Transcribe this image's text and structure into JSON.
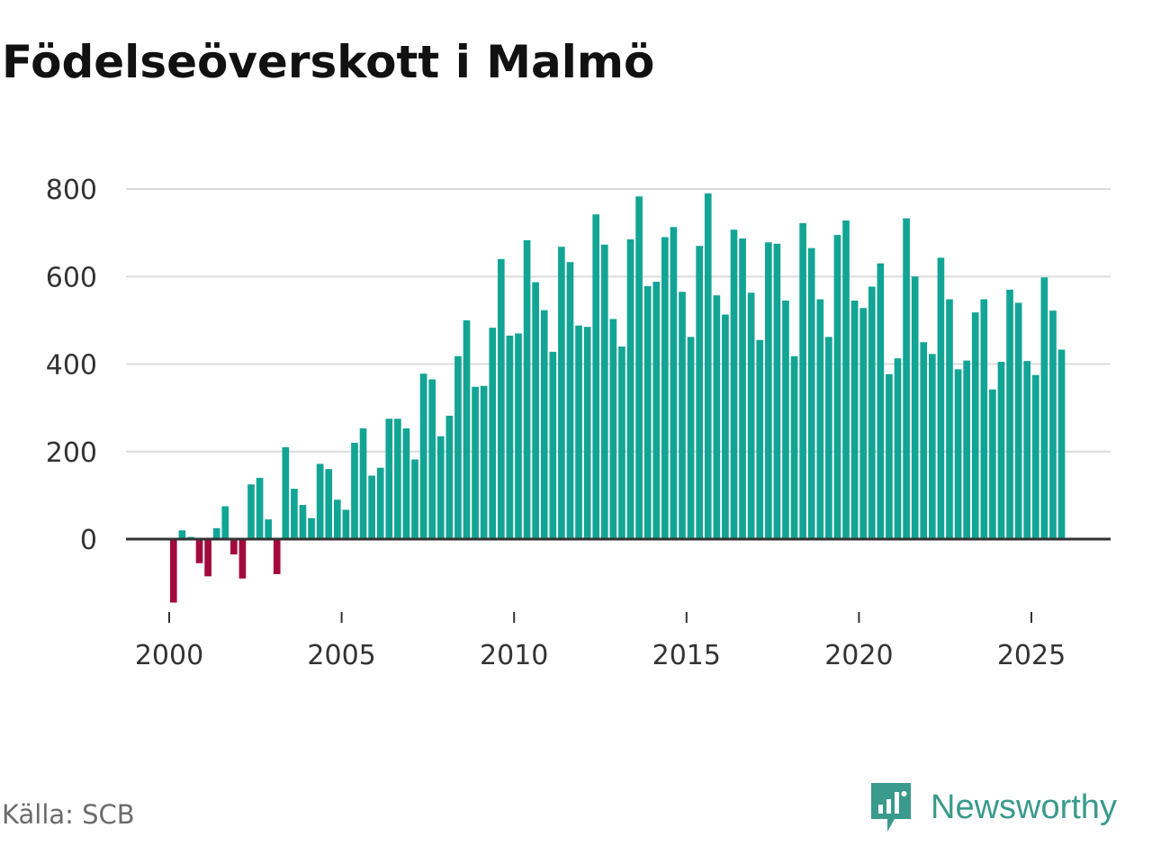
{
  "title": "Födelseöverskott i Malmö",
  "source": "Källa: SCB",
  "brand": {
    "name": "Newsworthy",
    "icon": "newsworthy-logo-icon",
    "color": "#3a9a8c"
  },
  "colors": {
    "positive": "#12a595",
    "negative": "#a3093e",
    "grid": "#dcdcdc",
    "baseline": "#333333"
  },
  "chart_data": {
    "type": "bar",
    "title": "Födelseöverskott i Malmö",
    "xlabel": "",
    "ylabel": "",
    "ylim": [
      -170,
      830
    ],
    "xlim": [
      2000.0,
      2026.5
    ],
    "y_ticks": [
      0,
      200,
      400,
      600,
      800
    ],
    "x_ticks": [
      2000,
      2005,
      2010,
      2015,
      2020,
      2025
    ],
    "x_tick_labels": [
      "2000",
      "2005",
      "2010",
      "2015",
      "2020",
      "2025"
    ],
    "y_tick_labels": [
      "0",
      "200",
      "400",
      "600",
      "800"
    ],
    "frequency": "quarterly",
    "start": 2000.0,
    "values": [
      -145,
      20,
      5,
      -55,
      -85,
      25,
      75,
      -35,
      -90,
      125,
      140,
      45,
      -80,
      210,
      115,
      78,
      48,
      172,
      160,
      90,
      67,
      220,
      253,
      145,
      163,
      275,
      275,
      253,
      182,
      378,
      365,
      235,
      282,
      418,
      500,
      348,
      350,
      483,
      640,
      465,
      470,
      683,
      587,
      523,
      428,
      668,
      633,
      488,
      485,
      742,
      673,
      503,
      440,
      685,
      783,
      578,
      588,
      690,
      713,
      565,
      462,
      670,
      790,
      557,
      513,
      707,
      687,
      563,
      455,
      678,
      675,
      545,
      418,
      722,
      665,
      548,
      462,
      695,
      728,
      545,
      528,
      577,
      630,
      377,
      413,
      733,
      600,
      450,
      423,
      643,
      548,
      388,
      408,
      518,
      548,
      342,
      405,
      570,
      540,
      407,
      375,
      598,
      522,
      433
    ]
  }
}
